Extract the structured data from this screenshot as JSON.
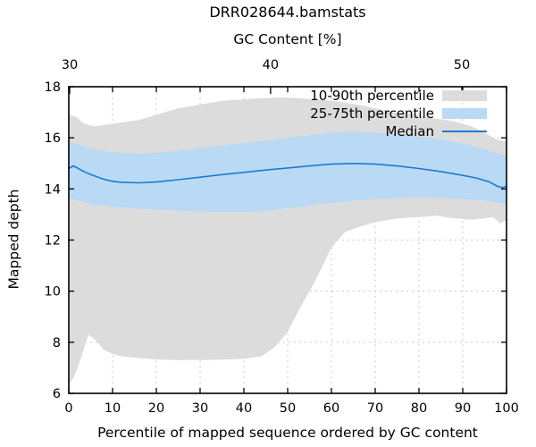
{
  "chart_data": {
    "type": "area",
    "title": "DRR028644.bamstats",
    "xlabel": "Percentile of mapped sequence ordered by GC content",
    "x2label": "GC Content [%]",
    "ylabel": "Mapped depth",
    "xlim": [
      0,
      100
    ],
    "ylim": [
      6,
      18
    ],
    "grid": true,
    "legend_position": "top-right-inside",
    "xticks": [
      0,
      10,
      20,
      30,
      40,
      50,
      60,
      70,
      80,
      90,
      100
    ],
    "yticks": [
      6,
      8,
      10,
      12,
      14,
      16,
      18
    ],
    "x2ticks": [
      {
        "label": "30",
        "pct": 0.2
      },
      {
        "label": "40",
        "pct": 46.1
      },
      {
        "label": "50",
        "pct": 89.8
      }
    ],
    "legend": [
      {
        "label": "10-90th percentile",
        "type": "band",
        "color": "#dcdcdc"
      },
      {
        "label": "25-75th percentile",
        "type": "band",
        "color": "#b9d9f5"
      },
      {
        "label": "Median",
        "type": "line",
        "color": "#1e7ad0"
      }
    ],
    "grid_color": "#c8c8c8",
    "axis_color": "#000000",
    "series": [
      {
        "name": "10-90th percentile",
        "type": "band",
        "color": "#dcdcdc",
        "x": [
          0,
          1,
          2,
          3,
          4.5,
          6,
          8,
          10,
          12,
          16,
          20,
          25,
          30,
          35,
          40,
          44,
          47,
          50,
          53,
          56,
          58,
          60,
          63,
          66,
          70,
          74,
          78,
          82,
          84,
          88,
          92,
          95,
          97,
          98.5,
          100
        ],
        "upper": [
          16.9,
          16.85,
          16.8,
          16.6,
          16.5,
          16.45,
          16.5,
          16.55,
          16.6,
          16.7,
          16.9,
          17.15,
          17.3,
          17.45,
          17.5,
          17.55,
          17.57,
          17.57,
          17.55,
          17.5,
          17.48,
          17.45,
          17.38,
          17.3,
          17.15,
          17.0,
          16.95,
          16.8,
          16.75,
          16.65,
          16.45,
          16.2,
          16.0,
          15.9,
          15.85
        ],
        "lower": [
          6.3,
          6.6,
          7.0,
          7.5,
          8.3,
          8.1,
          7.7,
          7.55,
          7.45,
          7.38,
          7.33,
          7.3,
          7.3,
          7.32,
          7.35,
          7.45,
          7.8,
          8.4,
          9.4,
          10.3,
          11.0,
          11.7,
          12.3,
          12.5,
          12.7,
          12.82,
          12.88,
          12.92,
          12.95,
          12.85,
          12.8,
          12.85,
          12.9,
          12.65,
          12.78
        ]
      },
      {
        "name": "25-75th percentile",
        "type": "band",
        "color": "#b9d9f5",
        "x": [
          0,
          1,
          2,
          3,
          4.5,
          6,
          8,
          10,
          12,
          16,
          20,
          25,
          30,
          35,
          40,
          44,
          47,
          50,
          53,
          56,
          58,
          60,
          63,
          66,
          70,
          74,
          78,
          82,
          84,
          88,
          92,
          95,
          97,
          98.5,
          100
        ],
        "upper": [
          15.86,
          15.8,
          15.75,
          15.68,
          15.6,
          15.55,
          15.48,
          15.44,
          15.4,
          15.38,
          15.42,
          15.5,
          15.6,
          15.7,
          15.8,
          15.88,
          15.93,
          16.0,
          16.07,
          16.12,
          16.16,
          16.2,
          16.24,
          16.25,
          16.2,
          16.15,
          16.1,
          16.0,
          15.97,
          15.85,
          15.7,
          15.55,
          15.45,
          15.38,
          15.3
        ],
        "lower": [
          13.65,
          13.6,
          13.55,
          13.5,
          13.42,
          13.38,
          13.35,
          13.3,
          13.28,
          13.22,
          13.2,
          13.15,
          13.12,
          13.1,
          13.1,
          13.13,
          13.18,
          13.25,
          13.3,
          13.38,
          13.42,
          13.45,
          13.5,
          13.55,
          13.6,
          13.63,
          13.65,
          13.65,
          13.65,
          13.62,
          13.58,
          13.55,
          13.5,
          13.45,
          13.4
        ]
      },
      {
        "name": "Median",
        "type": "line",
        "color": "#1e7ad0",
        "x": [
          0,
          1,
          2,
          3,
          4.5,
          6,
          8,
          10,
          12,
          16,
          20,
          25,
          30,
          35,
          40,
          45,
          50,
          55,
          60,
          65,
          70,
          75,
          80,
          85,
          90,
          93,
          96,
          98,
          99,
          100
        ],
        "y": [
          14.8,
          14.9,
          14.82,
          14.72,
          14.6,
          14.5,
          14.38,
          14.3,
          14.26,
          14.24,
          14.27,
          14.36,
          14.46,
          14.56,
          14.65,
          14.74,
          14.82,
          14.9,
          14.97,
          15.0,
          14.97,
          14.9,
          14.8,
          14.68,
          14.53,
          14.43,
          14.28,
          14.1,
          14.05,
          14.1
        ]
      }
    ]
  }
}
